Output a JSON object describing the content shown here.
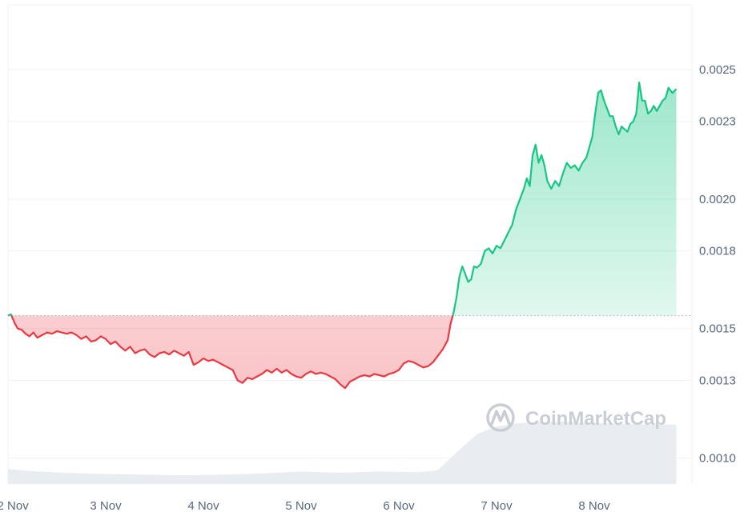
{
  "chart_data": {
    "type": "line",
    "baseline": 0.00155,
    "ylim": [
      0.0009,
      0.00275
    ],
    "xlim": [
      0,
      7.0
    ],
    "x_ticks": [
      {
        "x": 0.05,
        "label": "2 Nov"
      },
      {
        "x": 1.0,
        "label": "3 Nov"
      },
      {
        "x": 2.0,
        "label": "4 Nov"
      },
      {
        "x": 3.0,
        "label": "5 Nov"
      },
      {
        "x": 4.0,
        "label": "6 Nov"
      },
      {
        "x": 5.0,
        "label": "7 Nov"
      },
      {
        "x": 6.0,
        "label": "8 Nov"
      }
    ],
    "y_ticks": [
      {
        "y": 0.001,
        "label": "0.0010"
      },
      {
        "y": 0.0013,
        "label": "0.0013"
      },
      {
        "y": 0.0015,
        "label": "0.0015"
      },
      {
        "y": 0.0018,
        "label": "0.0018"
      },
      {
        "y": 0.002,
        "label": "0.0020"
      },
      {
        "y": 0.0023,
        "label": "0.0023"
      },
      {
        "y": 0.0025,
        "label": "0.0025"
      }
    ],
    "grid": true,
    "colors": {
      "up": "#16c784",
      "down": "#ea3943",
      "grid": "#eff2f5",
      "baseline": "#a6b0c3",
      "volume": "#e9ecf0"
    },
    "series": [
      {
        "values": [
          [
            0.0,
            0.00155
          ],
          [
            0.03,
            0.001555
          ],
          [
            0.07,
            0.00152
          ],
          [
            0.1,
            0.0015
          ],
          [
            0.14,
            0.001495
          ],
          [
            0.18,
            0.00148
          ],
          [
            0.22,
            0.00147
          ],
          [
            0.26,
            0.001485
          ],
          [
            0.3,
            0.001465
          ],
          [
            0.35,
            0.001475
          ],
          [
            0.4,
            0.001485
          ],
          [
            0.45,
            0.00148
          ],
          [
            0.5,
            0.00149
          ],
          [
            0.55,
            0.001485
          ],
          [
            0.6,
            0.00148
          ],
          [
            0.65,
            0.001485
          ],
          [
            0.7,
            0.001475
          ],
          [
            0.75,
            0.00146
          ],
          [
            0.8,
            0.00147
          ],
          [
            0.85,
            0.00145
          ],
          [
            0.9,
            0.001455
          ],
          [
            0.95,
            0.00147
          ],
          [
            1.0,
            0.00146
          ],
          [
            1.05,
            0.00144
          ],
          [
            1.1,
            0.00145
          ],
          [
            1.15,
            0.00143
          ],
          [
            1.2,
            0.001415
          ],
          [
            1.25,
            0.00143
          ],
          [
            1.3,
            0.001405
          ],
          [
            1.35,
            0.001415
          ],
          [
            1.4,
            0.00142
          ],
          [
            1.45,
            0.0014
          ],
          [
            1.5,
            0.00139
          ],
          [
            1.55,
            0.001405
          ],
          [
            1.6,
            0.00141
          ],
          [
            1.65,
            0.0014
          ],
          [
            1.7,
            0.001415
          ],
          [
            1.75,
            0.001405
          ],
          [
            1.8,
            0.001395
          ],
          [
            1.85,
            0.00141
          ],
          [
            1.9,
            0.00136
          ],
          [
            1.95,
            0.00137
          ],
          [
            2.0,
            0.001385
          ],
          [
            2.05,
            0.001375
          ],
          [
            2.1,
            0.00138
          ],
          [
            2.15,
            0.00137
          ],
          [
            2.2,
            0.00136
          ],
          [
            2.25,
            0.00135
          ],
          [
            2.3,
            0.00134
          ],
          [
            2.35,
            0.0013
          ],
          [
            2.4,
            0.00129
          ],
          [
            2.45,
            0.00131
          ],
          [
            2.5,
            0.001305
          ],
          [
            2.55,
            0.001315
          ],
          [
            2.6,
            0.001325
          ],
          [
            2.65,
            0.00134
          ],
          [
            2.7,
            0.00133
          ],
          [
            2.75,
            0.001345
          ],
          [
            2.8,
            0.00133
          ],
          [
            2.85,
            0.00134
          ],
          [
            2.9,
            0.001325
          ],
          [
            2.95,
            0.001315
          ],
          [
            3.0,
            0.00131
          ],
          [
            3.05,
            0.001325
          ],
          [
            3.1,
            0.001335
          ],
          [
            3.15,
            0.001325
          ],
          [
            3.2,
            0.00133
          ],
          [
            3.25,
            0.001325
          ],
          [
            3.3,
            0.001315
          ],
          [
            3.35,
            0.001305
          ],
          [
            3.4,
            0.001285
          ],
          [
            3.45,
            0.00127
          ],
          [
            3.5,
            0.001295
          ],
          [
            3.55,
            0.001305
          ],
          [
            3.6,
            0.001315
          ],
          [
            3.65,
            0.00132
          ],
          [
            3.7,
            0.001315
          ],
          [
            3.75,
            0.001325
          ],
          [
            3.8,
            0.00132
          ],
          [
            3.85,
            0.001315
          ],
          [
            3.9,
            0.001325
          ],
          [
            3.95,
            0.00133
          ],
          [
            4.0,
            0.00134
          ],
          [
            4.05,
            0.001365
          ],
          [
            4.1,
            0.001375
          ],
          [
            4.15,
            0.00137
          ],
          [
            4.2,
            0.00136
          ],
          [
            4.25,
            0.00135
          ],
          [
            4.3,
            0.001355
          ],
          [
            4.35,
            0.00137
          ],
          [
            4.4,
            0.001395
          ],
          [
            4.45,
            0.00142
          ],
          [
            4.5,
            0.001455
          ],
          [
            4.53,
            0.00152
          ],
          [
            4.56,
            0.00156
          ],
          [
            4.59,
            0.00162
          ],
          [
            4.62,
            0.0017
          ],
          [
            4.65,
            0.00174
          ],
          [
            4.68,
            0.00171
          ],
          [
            4.71,
            0.00168
          ],
          [
            4.74,
            0.00169
          ],
          [
            4.77,
            0.00174
          ],
          [
            4.8,
            0.001735
          ],
          [
            4.84,
            0.00175
          ],
          [
            4.88,
            0.0018
          ],
          [
            4.92,
            0.00181
          ],
          [
            4.96,
            0.00179
          ],
          [
            5.0,
            0.00182
          ],
          [
            5.04,
            0.00181
          ],
          [
            5.08,
            0.00184
          ],
          [
            5.12,
            0.00187
          ],
          [
            5.16,
            0.0019
          ],
          [
            5.2,
            0.00196
          ],
          [
            5.24,
            0.002
          ],
          [
            5.28,
            0.00204
          ],
          [
            5.31,
            0.00208
          ],
          [
            5.34,
            0.00205
          ],
          [
            5.37,
            0.00217
          ],
          [
            5.4,
            0.00221
          ],
          [
            5.43,
            0.00214
          ],
          [
            5.46,
            0.00217
          ],
          [
            5.49,
            0.00213
          ],
          [
            5.52,
            0.00207
          ],
          [
            5.56,
            0.00204
          ],
          [
            5.6,
            0.00207
          ],
          [
            5.64,
            0.00205
          ],
          [
            5.68,
            0.0021
          ],
          [
            5.72,
            0.00214
          ],
          [
            5.76,
            0.00212
          ],
          [
            5.8,
            0.00213
          ],
          [
            5.84,
            0.00211
          ],
          [
            5.88,
            0.00214
          ],
          [
            5.92,
            0.00216
          ],
          [
            5.95,
            0.0022
          ],
          [
            5.98,
            0.00224
          ],
          [
            6.01,
            0.00233
          ],
          [
            6.04,
            0.00241
          ],
          [
            6.07,
            0.00242
          ],
          [
            6.1,
            0.00238
          ],
          [
            6.13,
            0.00235
          ],
          [
            6.16,
            0.00232
          ],
          [
            6.19,
            0.00232
          ],
          [
            6.22,
            0.00228
          ],
          [
            6.25,
            0.00225
          ],
          [
            6.28,
            0.00228
          ],
          [
            6.31,
            0.00227
          ],
          [
            6.34,
            0.00226
          ],
          [
            6.37,
            0.00229
          ],
          [
            6.4,
            0.0023
          ],
          [
            6.43,
            0.00233
          ],
          [
            6.46,
            0.00245
          ],
          [
            6.49,
            0.00238
          ],
          [
            6.52,
            0.00238
          ],
          [
            6.55,
            0.00233
          ],
          [
            6.58,
            0.00234
          ],
          [
            6.61,
            0.00236
          ],
          [
            6.64,
            0.00234
          ],
          [
            6.67,
            0.00236
          ],
          [
            6.7,
            0.00238
          ],
          [
            6.73,
            0.00239
          ],
          [
            6.76,
            0.00243
          ],
          [
            6.8,
            0.00241
          ],
          [
            6.84,
            0.002425
          ]
        ]
      }
    ],
    "volume": [
      [
        0.0,
        0.24
      ],
      [
        0.3,
        0.2
      ],
      [
        0.6,
        0.18
      ],
      [
        1.0,
        0.16
      ],
      [
        1.4,
        0.15
      ],
      [
        1.8,
        0.14
      ],
      [
        2.2,
        0.15
      ],
      [
        2.6,
        0.17
      ],
      [
        3.0,
        0.2
      ],
      [
        3.4,
        0.18
      ],
      [
        3.8,
        0.2
      ],
      [
        4.2,
        0.19
      ],
      [
        4.4,
        0.22
      ],
      [
        4.6,
        0.52
      ],
      [
        4.8,
        0.8
      ],
      [
        5.0,
        0.92
      ],
      [
        5.2,
        0.97
      ],
      [
        5.4,
        0.99
      ],
      [
        5.7,
        1.0
      ],
      [
        6.0,
        0.98
      ],
      [
        6.3,
        0.96
      ],
      [
        6.6,
        0.95
      ],
      [
        6.84,
        0.95
      ]
    ]
  },
  "watermark": {
    "text": "CoinMarketCap",
    "icon": "coinmarketcap-logo"
  }
}
